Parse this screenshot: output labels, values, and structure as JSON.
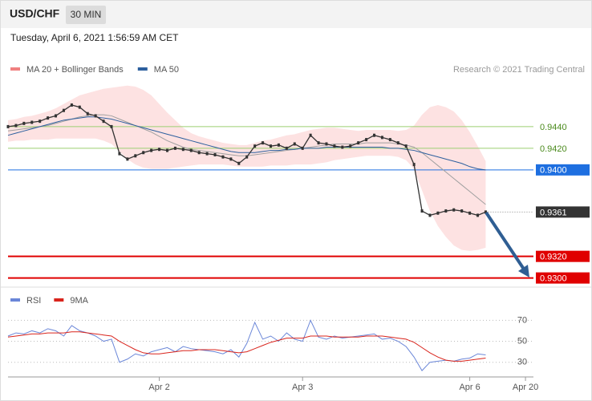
{
  "header": {
    "symbol": "USD/CHF",
    "interval": "30 MIN",
    "timestamp": "Tuesday, April 6, 2021 1:56:59 AM CET"
  },
  "chart_data": [
    {
      "type": "line",
      "source": "Research © 2021 Trading Central",
      "x": [
        0,
        1,
        2,
        3,
        4,
        5,
        6,
        7,
        8,
        9,
        10,
        11,
        12,
        13,
        14,
        15,
        16,
        17,
        18,
        19,
        20,
        21,
        22,
        23,
        24,
        25,
        26,
        27,
        28,
        29,
        30,
        31,
        32,
        33,
        34,
        35,
        36,
        37,
        38,
        39,
        40,
        41,
        42,
        43,
        44,
        45,
        46,
        47,
        48,
        49,
        50,
        51,
        52,
        53,
        54,
        55,
        56,
        57,
        58,
        59,
        60
      ],
      "color": "#333333",
      "values": [
        0.944,
        0.9441,
        0.9443,
        0.9444,
        0.9445,
        0.9448,
        0.945,
        0.9455,
        0.946,
        0.9458,
        0.9452,
        0.945,
        0.9445,
        0.944,
        0.9415,
        0.941,
        0.9413,
        0.9416,
        0.9418,
        0.9419,
        0.9418,
        0.942,
        0.9419,
        0.9418,
        0.9416,
        0.9415,
        0.9414,
        0.9412,
        0.941,
        0.9406,
        0.9412,
        0.9422,
        0.9425,
        0.9422,
        0.9423,
        0.942,
        0.9424,
        0.942,
        0.9432,
        0.9425,
        0.9424,
        0.9422,
        0.9421,
        0.9422,
        0.9425,
        0.9428,
        0.9432,
        0.943,
        0.9428,
        0.9425,
        0.9422,
        0.9405,
        0.9362,
        0.9358,
        0.936,
        0.9362,
        0.9363,
        0.9362,
        0.936,
        0.9358,
        0.9361
      ],
      "series": [
        {
          "name": "MA 20 + Bollinger Bands",
          "color": "#f08080",
          "line_color": "#a0a0a0",
          "band_color": "#fde2e2",
          "values": [
            0.9436,
            0.9437,
            0.9438,
            0.9439,
            0.944,
            0.9441,
            0.9443,
            0.9445,
            0.9447,
            0.9449,
            0.945,
            0.9451,
            0.9451,
            0.945,
            0.9447,
            0.9444,
            0.9441,
            0.9438,
            0.9435,
            0.9431,
            0.9427,
            0.9424,
            0.9421,
            0.9419,
            0.9418,
            0.9417,
            0.9416,
            0.9415,
            0.9414,
            0.9413,
            0.9413,
            0.9414,
            0.9415,
            0.9416,
            0.9417,
            0.9418,
            0.9419,
            0.942,
            0.9421,
            0.9422,
            0.9423,
            0.9424,
            0.9424,
            0.9424,
            0.9424,
            0.9425,
            0.9425,
            0.9425,
            0.9425,
            0.9424,
            0.9423,
            0.9421,
            0.9416,
            0.941,
            0.9404,
            0.9398,
            0.9392,
            0.9386,
            0.938,
            0.9374,
            0.9368
          ],
          "upper": [
            0.9446,
            0.9447,
            0.9449,
            0.945,
            0.9452,
            0.9454,
            0.9457,
            0.9461,
            0.9465,
            0.9469,
            0.9471,
            0.9473,
            0.9475,
            0.9476,
            0.9477,
            0.9478,
            0.9477,
            0.9474,
            0.9469,
            0.9461,
            0.9453,
            0.9446,
            0.9439,
            0.9434,
            0.9431,
            0.9429,
            0.9427,
            0.9425,
            0.9424,
            0.9423,
            0.9423,
            0.9425,
            0.9427,
            0.9428,
            0.943,
            0.9432,
            0.9433,
            0.9435,
            0.9437,
            0.9438,
            0.9439,
            0.9439,
            0.9438,
            0.9437,
            0.9436,
            0.9437,
            0.9437,
            0.9437,
            0.9437,
            0.9436,
            0.9437,
            0.9441,
            0.9451,
            0.9458,
            0.946,
            0.9458,
            0.9454,
            0.9446,
            0.9435,
            0.9422,
            0.9408
          ],
          "lower": [
            0.9426,
            0.9427,
            0.9427,
            0.9428,
            0.9428,
            0.9428,
            0.9429,
            0.9429,
            0.9429,
            0.9429,
            0.9429,
            0.9429,
            0.9427,
            0.9424,
            0.9417,
            0.941,
            0.9405,
            0.9402,
            0.9401,
            0.9401,
            0.9401,
            0.9402,
            0.9403,
            0.9404,
            0.9405,
            0.9405,
            0.9405,
            0.9405,
            0.9404,
            0.9403,
            0.9403,
            0.9403,
            0.9403,
            0.9404,
            0.9404,
            0.9404,
            0.9405,
            0.9405,
            0.9405,
            0.9406,
            0.9407,
            0.9409,
            0.941,
            0.9411,
            0.9412,
            0.9413,
            0.9413,
            0.9413,
            0.9413,
            0.9412,
            0.9409,
            0.9401,
            0.9381,
            0.9362,
            0.9348,
            0.9338,
            0.933,
            0.9326,
            0.9325,
            0.9326,
            0.9328
          ]
        },
        {
          "name": "MA 50",
          "color": "#2c5f9e",
          "values": [
            0.9432,
            0.9434,
            0.9436,
            0.9438,
            0.944,
            0.9442,
            0.9444,
            0.9446,
            0.9447,
            0.9448,
            0.9449,
            0.9449,
            0.9448,
            0.9447,
            0.9445,
            0.9443,
            0.9441,
            0.9439,
            0.9437,
            0.9435,
            0.9433,
            0.9431,
            0.9429,
            0.9427,
            0.9425,
            0.9423,
            0.9421,
            0.9419,
            0.9417,
            0.9416,
            0.9416,
            0.9416,
            0.9417,
            0.9418,
            0.9418,
            0.9419,
            0.9419,
            0.942,
            0.942,
            0.942,
            0.9421,
            0.9421,
            0.9421,
            0.9421,
            0.9421,
            0.9421,
            0.9421,
            0.9421,
            0.942,
            0.942,
            0.9419,
            0.9418,
            0.9416,
            0.9414,
            0.9412,
            0.941,
            0.9408,
            0.9406,
            0.9403,
            0.9401,
            0.94
          ]
        }
      ],
      "levels": [
        {
          "value": 0.944,
          "label": "0.9440",
          "color": "#9ccf72",
          "boxed": false,
          "line": "solid"
        },
        {
          "value": 0.942,
          "label": "0.9420",
          "color": "#9ccf72",
          "boxed": false,
          "line": "solid"
        },
        {
          "value": 0.94,
          "label": "0.9400",
          "color": "#1e6fe0",
          "boxed": true,
          "line": "solid"
        },
        {
          "value": 0.9361,
          "label": "0.9361",
          "color": "#333333",
          "boxed": true,
          "line": "dotted"
        },
        {
          "value": 0.932,
          "label": "0.9320",
          "color": "#e00000",
          "boxed": true,
          "line": "thick"
        },
        {
          "value": 0.93,
          "label": "0.9300",
          "color": "#e00000",
          "boxed": true,
          "line": "thick"
        }
      ],
      "xlim": [
        0,
        66
      ],
      "ylim": [
        0.9296,
        0.948
      ]
    },
    {
      "type": "line",
      "x": [
        0,
        1,
        2,
        3,
        4,
        5,
        6,
        7,
        8,
        9,
        10,
        11,
        12,
        13,
        14,
        15,
        16,
        17,
        18,
        19,
        20,
        21,
        22,
        23,
        24,
        25,
        26,
        27,
        28,
        29,
        30,
        31,
        32,
        33,
        34,
        35,
        36,
        37,
        38,
        39,
        40,
        41,
        42,
        43,
        44,
        45,
        46,
        47,
        48,
        49,
        50,
        51,
        52,
        53,
        54,
        55,
        56,
        57,
        58,
        59,
        60
      ],
      "series": [
        {
          "name": "RSI",
          "color": "#6a86d8",
          "values": [
            55,
            58,
            57,
            60,
            58,
            62,
            60,
            55,
            65,
            60,
            58,
            55,
            50,
            52,
            30,
            33,
            38,
            36,
            40,
            42,
            44,
            40,
            45,
            43,
            42,
            41,
            40,
            38,
            42,
            35,
            48,
            68,
            52,
            55,
            50,
            58,
            52,
            50,
            70,
            54,
            52,
            55,
            53,
            54,
            55,
            56,
            57,
            52,
            53,
            50,
            45,
            35,
            22,
            30,
            31,
            32,
            31,
            33,
            34,
            38,
            37
          ]
        },
        {
          "name": "9MA",
          "color": "#d9241c",
          "values": [
            54,
            55,
            56,
            57,
            57,
            58,
            58,
            58,
            59,
            59,
            58,
            57,
            56,
            55,
            50,
            46,
            42,
            39,
            38,
            38,
            39,
            40,
            41,
            41,
            42,
            42,
            42,
            41,
            40,
            39,
            40,
            43,
            46,
            49,
            51,
            53,
            53,
            53,
            55,
            55,
            55,
            54,
            54,
            54,
            54,
            55,
            55,
            55,
            54,
            53,
            52,
            49,
            44,
            39,
            35,
            32,
            31,
            31,
            32,
            33,
            34
          ]
        }
      ],
      "xlim": [
        0,
        66
      ],
      "ylim": [
        16,
        81
      ],
      "yticks": [
        30,
        50,
        70
      ],
      "grid": true,
      "xticks": [
        {
          "value": 19,
          "label": "Apr 2"
        },
        {
          "value": 37,
          "label": "Apr 3"
        },
        {
          "value": 58,
          "label": "Apr 6"
        },
        {
          "value": 65,
          "label": "Apr 20"
        }
      ]
    }
  ]
}
